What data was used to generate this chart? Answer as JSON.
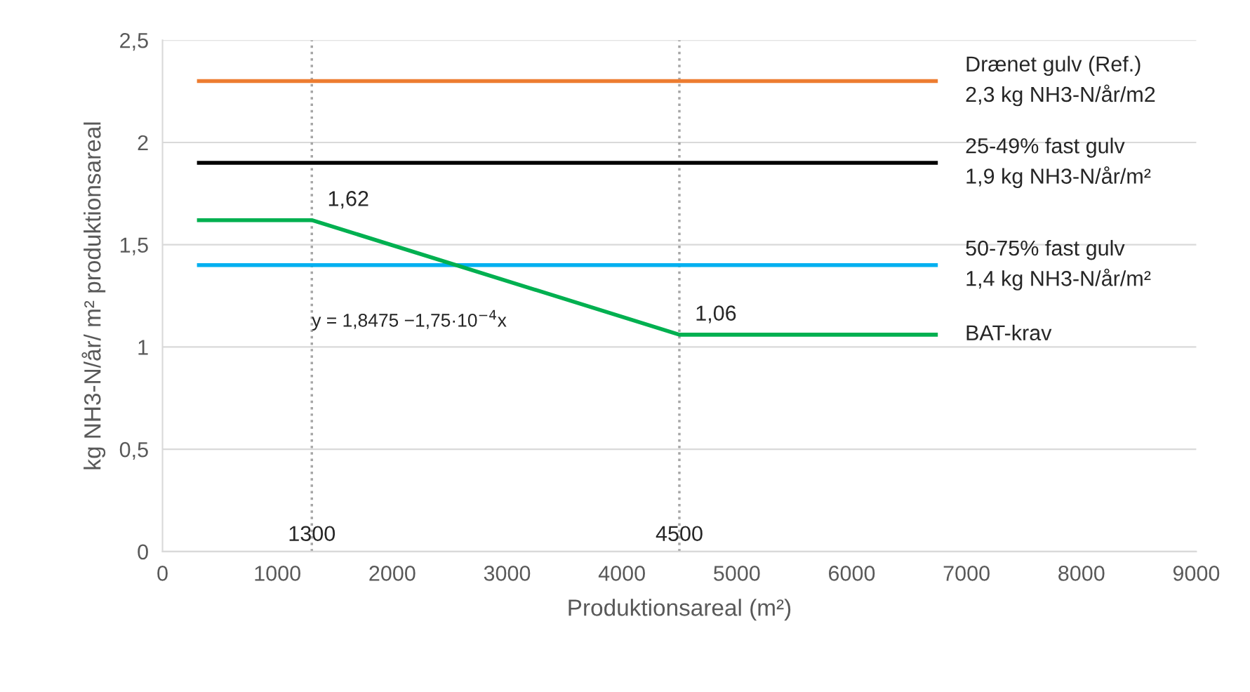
{
  "chart_data": {
    "type": "line",
    "xlabel": "Produktionsareal (m²)",
    "ylabel": "kg NH3-N/år/ m² produktionsareal",
    "xlim": [
      0,
      9000
    ],
    "xticks": [
      0,
      1000,
      2000,
      3000,
      4000,
      5000,
      6000,
      7000,
      8000,
      9000
    ],
    "ylim": [
      0,
      2.5
    ],
    "yticks": [
      0,
      {
        "value": 0.5,
        "label": "0,5"
      },
      1,
      {
        "value": 1.5,
        "label": "1,5"
      },
      2,
      {
        "value": 2.5,
        "label": "2,5"
      }
    ],
    "grid": "y",
    "marker": "none",
    "line_style": "solid",
    "series": [
      {
        "name": "Drænet gulv (Ref.)\n2,3 kg NH3-N/år/m2",
        "color": "#ed7d31",
        "x": [
          300,
          6750
        ],
        "values": [
          2.3,
          2.3
        ]
      },
      {
        "name": "25-49% fast gulv\n1,9 kg NH3-N/år/m²",
        "color": "#000000",
        "x": [
          300,
          6750
        ],
        "values": [
          1.9,
          1.9
        ]
      },
      {
        "name": "50-75% fast gulv\n1,4 kg NH3-N/år/m²",
        "color": "#00b0f0",
        "x": [
          300,
          6750
        ],
        "values": [
          1.4,
          1.4
        ]
      },
      {
        "name": "BAT-krav",
        "color": "#00b050",
        "x": [
          300,
          1300,
          4500,
          6750
        ],
        "values": [
          1.62,
          1.62,
          1.06,
          1.06
        ]
      }
    ],
    "ref_lines": [
      {
        "axis": "x",
        "value": 1300,
        "label": "1300",
        "color": "#a6a6a6",
        "line_style": "dotted"
      },
      {
        "axis": "x",
        "value": 4500,
        "label": "4500",
        "color": "#a6a6a6",
        "line_style": "dotted"
      }
    ],
    "annotations": [
      {
        "text": "1,62",
        "x": 1300,
        "y": 1.62
      },
      {
        "text": "1,06",
        "x": 4500,
        "y": 1.06
      },
      "y = 1,8475 −1,75·10$^{−4}$x"
    ]
  }
}
